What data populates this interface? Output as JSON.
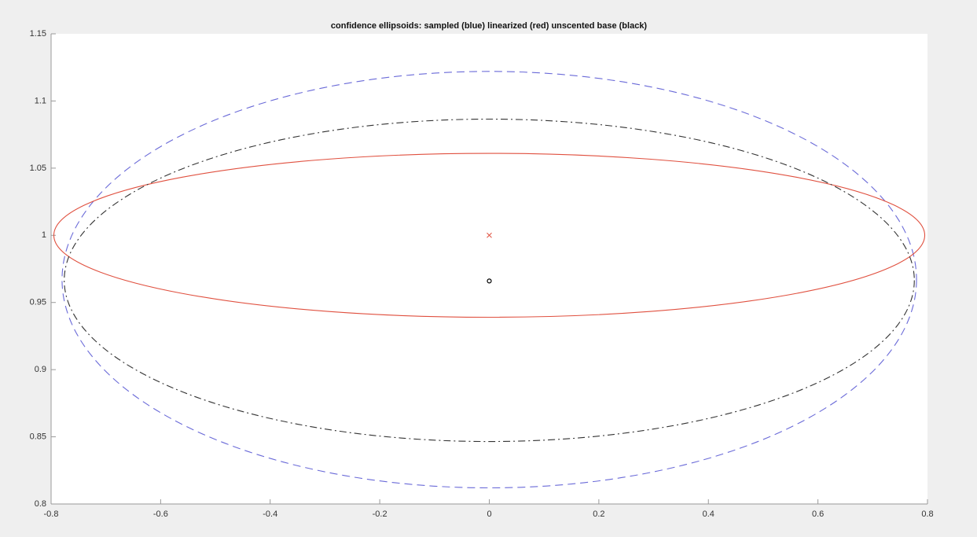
{
  "chart_data": {
    "type": "ellipse",
    "title": "confidence ellipsoids: sampled (blue) linearized (red) unscented base (black)",
    "xlim": [
      -0.8,
      0.8
    ],
    "ylim": [
      0.8,
      1.15
    ],
    "xticks": [
      -0.8,
      -0.6,
      -0.4,
      -0.2,
      0,
      0.2,
      0.4,
      0.6,
      0.8
    ],
    "yticks": [
      0.8,
      0.85,
      0.9,
      0.95,
      1,
      1.05,
      1.1,
      1.15
    ],
    "series": [
      {
        "color": "#6a6ad8",
        "linestyle": "dashed",
        "center": [
          0,
          0.967
        ],
        "radii": [
          0.78,
          0.155
        ]
      },
      {
        "color": "#e0503f",
        "linestyle": "solid",
        "center": [
          0,
          1
        ],
        "radii": [
          0.795,
          0.061
        ]
      },
      {
        "color": "#333333",
        "linestyle": "dashdot",
        "center": [
          0,
          0.9665
        ],
        "radii": [
          0.776,
          0.12
        ]
      }
    ],
    "markers": [
      {
        "x": 0,
        "y": 1,
        "color": "#e0503f",
        "symbol": "x"
      },
      {
        "x": 0,
        "y": 0.966,
        "color": "#000000",
        "symbol": "o"
      }
    ]
  }
}
